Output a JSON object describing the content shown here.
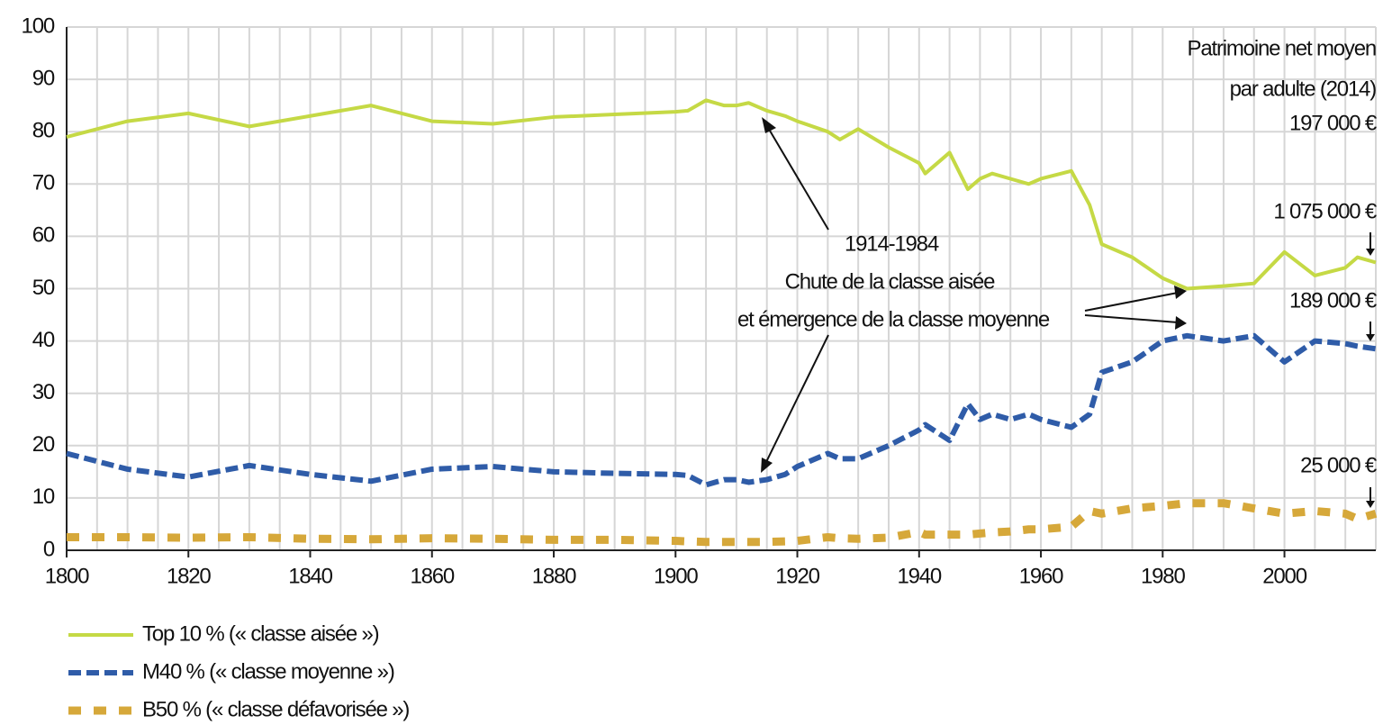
{
  "chart_data": {
    "type": "line",
    "x": [
      1800,
      1810,
      1820,
      1830,
      1840,
      1850,
      1860,
      1870,
      1880,
      1890,
      1900,
      1902,
      1905,
      1908,
      1910,
      1912,
      1915,
      1918,
      1920,
      1925,
      1927,
      1930,
      1935,
      1940,
      1941,
      1945,
      1948,
      1950,
      1952,
      1955,
      1958,
      1960,
      1965,
      1968,
      1970,
      1975,
      1980,
      1984,
      1990,
      1995,
      2000,
      2005,
      2010,
      2012,
      2015
    ],
    "series": [
      {
        "name": "Top 10 % (« classe aisée »)",
        "color": "#c5d945",
        "values": [
          79,
          82,
          83.5,
          81,
          83,
          85,
          82,
          81.5,
          82.8,
          83.3,
          83.8,
          84,
          86,
          85,
          85,
          85.5,
          84,
          83,
          82,
          80,
          78.5,
          80.5,
          77,
          74,
          72,
          76,
          69,
          71,
          72,
          71,
          70,
          71,
          72.5,
          66,
          58.5,
          56,
          52,
          50,
          50.5,
          51,
          57,
          52.5,
          54,
          56,
          55
        ]
      },
      {
        "name": "M40 % (« classe moyenne »)",
        "color": "#2f5ca8",
        "values": [
          18.5,
          15.5,
          14,
          16.2,
          14.5,
          13.2,
          15.5,
          16,
          15,
          14.7,
          14.5,
          14.3,
          12.5,
          13.5,
          13.5,
          13,
          13.5,
          14.5,
          16,
          18.5,
          17.5,
          17.5,
          20,
          23,
          24,
          21,
          28,
          25,
          26,
          25,
          26,
          25,
          23.5,
          26,
          34,
          36,
          40,
          41,
          40,
          41,
          36,
          40,
          39.5,
          39,
          38.5
        ]
      },
      {
        "name": "B50 % (« classe défavorisée »)",
        "color": "#d6a83a",
        "values": [
          2.5,
          2.5,
          2.4,
          2.5,
          2.2,
          2.1,
          2.3,
          2.2,
          2,
          2,
          1.8,
          1.7,
          1.6,
          1.6,
          1.6,
          1.6,
          1.6,
          1.7,
          1.8,
          2.5,
          2.3,
          2.2,
          2.4,
          3.5,
          3,
          3,
          3,
          3.2,
          3.4,
          3.6,
          4,
          4,
          4.5,
          7.5,
          7,
          8,
          8.5,
          9,
          9,
          8,
          7,
          7.5,
          7,
          6,
          7
        ]
      }
    ],
    "xlim": [
      1800,
      2015
    ],
    "xticks": [
      1800,
      1820,
      1840,
      1860,
      1880,
      1900,
      1920,
      1940,
      1960,
      1980,
      2000
    ],
    "ylim": [
      0,
      100
    ],
    "yticks": [
      0,
      10,
      20,
      30,
      40,
      50,
      60,
      70,
      80,
      90,
      100
    ],
    "grid": true,
    "annotations": [
      "Patrimoine net moyen",
      "par adulte (2014)",
      "197 000 €",
      "1 075 000 €",
      "189 000 €",
      "25 000 €",
      "1914-1984",
      "Chute de la classe aisée",
      "et émergence de la classe moyenne"
    ]
  }
}
